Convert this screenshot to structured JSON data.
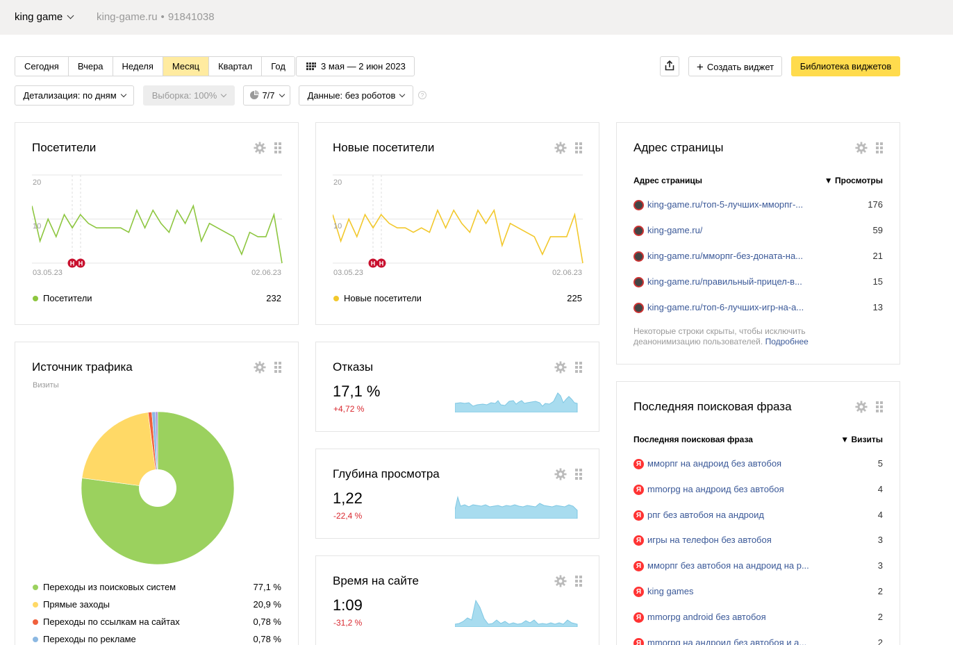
{
  "header": {
    "counter_name": "king game",
    "site": "king-game.ru",
    "counter_id": "91841038"
  },
  "periods": [
    "Сегодня",
    "Вчера",
    "Неделя",
    "Месяц",
    "Квартал",
    "Год"
  ],
  "active_period": "Месяц",
  "date_range": "3 мая — 2 июн 2023",
  "create_widget_label": "Создать виджет",
  "library_label": "Библиотека виджетов",
  "filters": {
    "detail": "Детализация: по дням",
    "sample": "Выборка: 100%",
    "segments": "7/7",
    "data": "Данные: без роботов"
  },
  "visitors": {
    "title": "Посетители",
    "legend": "Посетители",
    "total": "232",
    "y_top": "20",
    "y_mid": "10",
    "x_start": "03.05.23",
    "x_end": "02.06.23",
    "color": "#8dc63f"
  },
  "new_visitors": {
    "title": "Новые посетители",
    "legend": "Новые посетители",
    "total": "225",
    "y_top": "20",
    "y_mid": "10",
    "x_start": "03.05.23",
    "x_end": "02.06.23",
    "color": "#f2c82c"
  },
  "chart_data": [
    {
      "type": "line",
      "title": "Посетители",
      "x_range": [
        "03.05.23",
        "02.06.23"
      ],
      "ylim": [
        0,
        20
      ],
      "series": [
        {
          "name": "Посетители",
          "values": [
            13,
            5,
            10,
            6,
            11,
            8,
            11,
            9,
            8,
            8,
            8,
            8,
            7,
            12,
            8,
            12,
            9,
            7,
            12,
            9,
            13,
            5,
            9,
            8,
            7,
            6,
            2,
            7,
            6,
            6,
            11,
            0
          ]
        }
      ]
    },
    {
      "type": "line",
      "title": "Новые посетители",
      "x_range": [
        "03.05.23",
        "02.06.23"
      ],
      "ylim": [
        0,
        20
      ],
      "series": [
        {
          "name": "Новые посетители",
          "values": [
            11,
            5,
            10,
            6,
            11,
            8,
            11,
            9,
            8,
            8,
            7,
            8,
            7,
            12,
            8,
            12,
            9,
            7,
            12,
            9,
            12,
            4,
            9,
            8,
            7,
            6,
            2,
            6,
            6,
            6,
            11,
            0
          ]
        }
      ]
    },
    {
      "type": "pie",
      "title": "Источник трафика",
      "subtitle": "Визиты",
      "categories": [
        "Переходы из поисковых систем",
        "Прямые заходы",
        "Переходы по ссылкам на сайтах",
        "Переходы по рекламе"
      ],
      "values": [
        77.1,
        20.9,
        0.78,
        0.78
      ],
      "colors": [
        "#9bd15e",
        "#ffd966",
        "#f0603c",
        "#8cb8e2",
        "#a98bd8"
      ]
    }
  ],
  "traffic": {
    "title": "Источник трафика",
    "subtitle": "Визиты",
    "items": [
      {
        "label": "Переходы из поисковых систем",
        "value": "77,1 %",
        "color": "#9bd15e"
      },
      {
        "label": "Прямые заходы",
        "value": "20,9 %",
        "color": "#ffd966"
      },
      {
        "label": "Переходы по ссылкам на сайтах",
        "value": "0,78 %",
        "color": "#f0603c"
      },
      {
        "label": "Переходы по рекламе",
        "value": "0,78 %",
        "color": "#8cb8e2"
      }
    ]
  },
  "bounce": {
    "title": "Отказы",
    "value": "17,1 %",
    "delta": "+4,72 %"
  },
  "depth": {
    "title": "Глубина просмотра",
    "value": "1,22",
    "delta": "-22,4 %"
  },
  "time": {
    "title": "Время на сайте",
    "value": "1:09",
    "delta": "-31,2 %"
  },
  "pages": {
    "title": "Адрес страницы",
    "col1": "Адрес страницы",
    "col2": "▼ Просмотры",
    "rows": [
      {
        "url": "king-game.ru/топ-5-лучших-ммopпг-...",
        "value": "176"
      },
      {
        "url": "king-game.ru/",
        "value": "59"
      },
      {
        "url": "king-game.ru/ммopпг-без-доната-на...",
        "value": "21"
      },
      {
        "url": "king-game.ru/правильный-прицел-в...",
        "value": "15"
      },
      {
        "url": "king-game.ru/топ-6-лучших-игр-на-а...",
        "value": "13"
      }
    ],
    "note": "Некоторые строки скрыты, чтобы исключить деанонимизацию пользователей.",
    "note_link": "Подробнее"
  },
  "search": {
    "title": "Последняя поисковая фраза",
    "col1": "Последняя поисковая фраза",
    "col2": "▼ Визиты",
    "rows": [
      {
        "phrase": "ммopпг на андроид без автобоя",
        "value": "5"
      },
      {
        "phrase": "mmorpg на андроид без автобоя",
        "value": "4"
      },
      {
        "phrase": "рпг без автобоя на андроид",
        "value": "4"
      },
      {
        "phrase": "игры на телефон без автобоя",
        "value": "3"
      },
      {
        "phrase": "ммopпг без автобоя на андроид на р...",
        "value": "3"
      },
      {
        "phrase": "king games",
        "value": "2"
      },
      {
        "phrase": "mmorpg android без автобоя",
        "value": "2"
      },
      {
        "phrase": "mmorpg на андроид без автобоя и а...",
        "value": "2"
      }
    ]
  }
}
